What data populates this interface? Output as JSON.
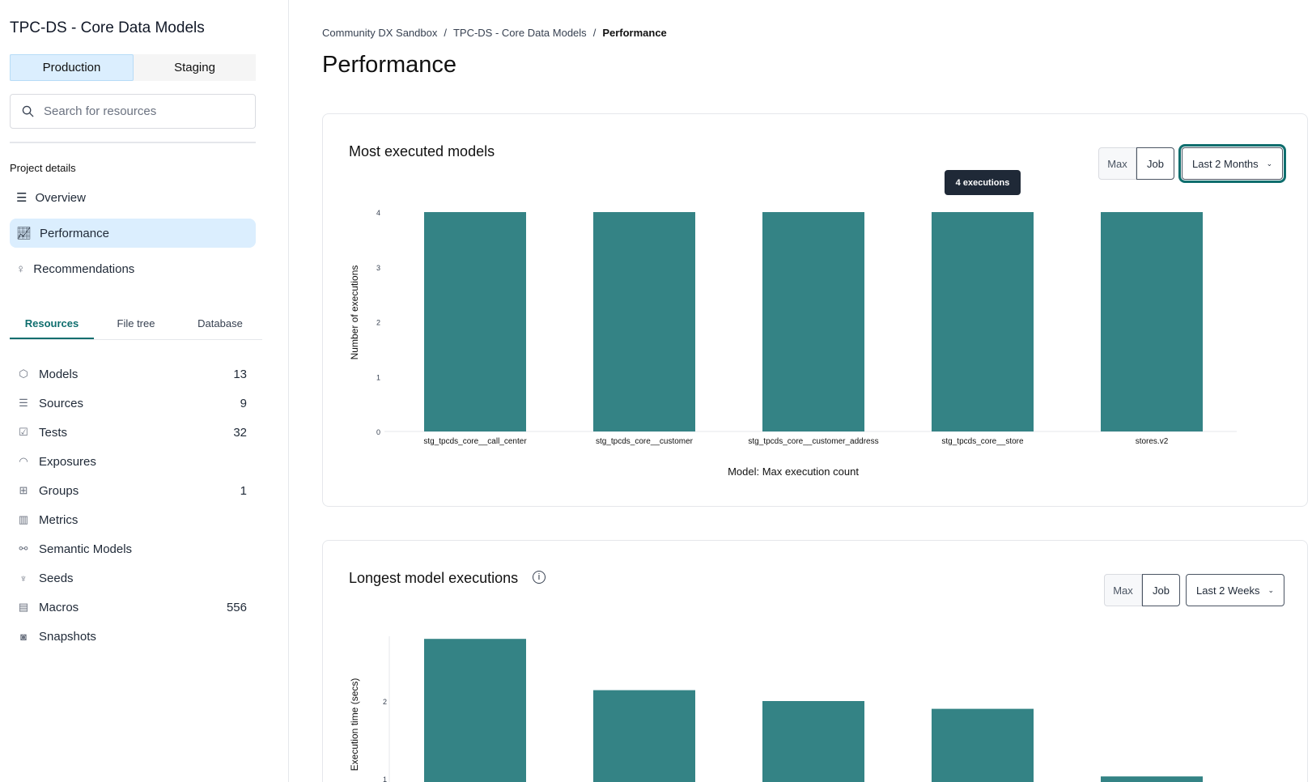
{
  "sidebar": {
    "project_title": "TPC-DS - Core Data Models",
    "envs": [
      "Production",
      "Staging"
    ],
    "search_placeholder": "Search for resources",
    "section": "Project details",
    "nav": [
      {
        "label": "Overview",
        "icon": "list-icon"
      },
      {
        "label": "Performance",
        "icon": "chart-line-icon",
        "active": true
      },
      {
        "label": "Recommendations",
        "icon": "lightbulb-icon"
      }
    ],
    "tabs": [
      "Resources",
      "File tree",
      "Database"
    ],
    "resources": [
      {
        "label": "Models",
        "count": "13",
        "icon": "cube-icon"
      },
      {
        "label": "Sources",
        "count": "9",
        "icon": "database-icon"
      },
      {
        "label": "Tests",
        "count": "32",
        "icon": "clipboard-check-icon"
      },
      {
        "label": "Exposures",
        "count": "",
        "icon": "gauge-icon"
      },
      {
        "label": "Groups",
        "count": "1",
        "icon": "grid-icon"
      },
      {
        "label": "Metrics",
        "count": "",
        "icon": "bar-chart-icon"
      },
      {
        "label": "Semantic Models",
        "count": "",
        "icon": "nodes-icon"
      },
      {
        "label": "Seeds",
        "count": "",
        "icon": "sprout-icon"
      },
      {
        "label": "Macros",
        "count": "556",
        "icon": "file-icon"
      },
      {
        "label": "Snapshots",
        "count": "",
        "icon": "camera-icon"
      }
    ]
  },
  "breadcrumb": [
    "Community DX Sandbox",
    "TPC-DS - Core Data Models",
    "Performance"
  ],
  "page_title": "Performance",
  "cards": [
    {
      "title": "Most executed models",
      "seg": [
        "Max",
        "Job"
      ],
      "range": "Last 2 Months",
      "tooltip": "4 executions"
    },
    {
      "title": "Longest model executions",
      "seg": [
        "Max",
        "Job"
      ],
      "range": "Last 2 Weeks"
    }
  ],
  "accent": "#0f6e6e",
  "bar_color": "#348385",
  "chart_data": [
    {
      "type": "bar",
      "categories": [
        "stg_tpcds_core__call_center",
        "stg_tpcds_core__customer",
        "stg_tpcds_core__customer_address",
        "stg_tpcds_core__store",
        "stores.v2"
      ],
      "values": [
        4,
        4,
        4,
        4,
        4
      ],
      "xlabel": "Model: Max execution count",
      "ylabel": "Number of executions",
      "ylim": [
        0,
        4
      ],
      "yticks": [
        0,
        1,
        2,
        3,
        4
      ]
    },
    {
      "type": "bar",
      "values": [
        2.8,
        2.14,
        2.0,
        1.9,
        1.03
      ],
      "ylabel": "Execution time (secs)",
      "yticks": [
        1,
        2
      ]
    }
  ]
}
